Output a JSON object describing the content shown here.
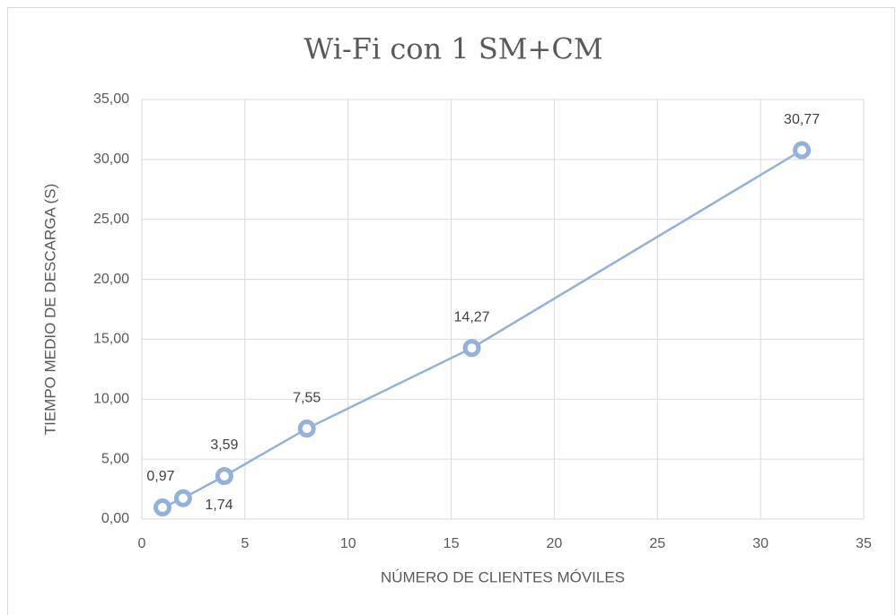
{
  "chart_data": {
    "type": "line",
    "title": "Wi-Fi con 1 SM+CM",
    "xlabel": "NÚMERO DE CLIENTES MÓVILES",
    "ylabel": "TIEMPO MEDIO DE DESCARGA (S)",
    "x": [
      1,
      2,
      4,
      8,
      16,
      32
    ],
    "series": [
      {
        "name": "Wi-Fi con 1 SM+CM",
        "color": "#93b1da",
        "values": [
          0.97,
          1.74,
          3.59,
          7.55,
          14.27,
          30.77
        ],
        "value_labels": [
          "0,97",
          "1,74",
          "3,59",
          "7,55",
          "14,27",
          "30,77"
        ]
      }
    ],
    "xlim": [
      0,
      35
    ],
    "xticks": [
      0,
      5,
      10,
      15,
      20,
      25,
      30,
      35
    ],
    "ylim": [
      0,
      35
    ],
    "yticks": [
      {
        "value": 0,
        "label": "0,00"
      },
      {
        "value": 5,
        "label": "5,00"
      },
      {
        "value": 10,
        "label": "10,00"
      },
      {
        "value": 15,
        "label": "15,00"
      },
      {
        "value": 20,
        "label": "20,00"
      },
      {
        "value": 25,
        "label": "25,00"
      },
      {
        "value": 30,
        "label": "30,00"
      },
      {
        "value": 35,
        "label": "35,00"
      }
    ],
    "grid": true
  }
}
